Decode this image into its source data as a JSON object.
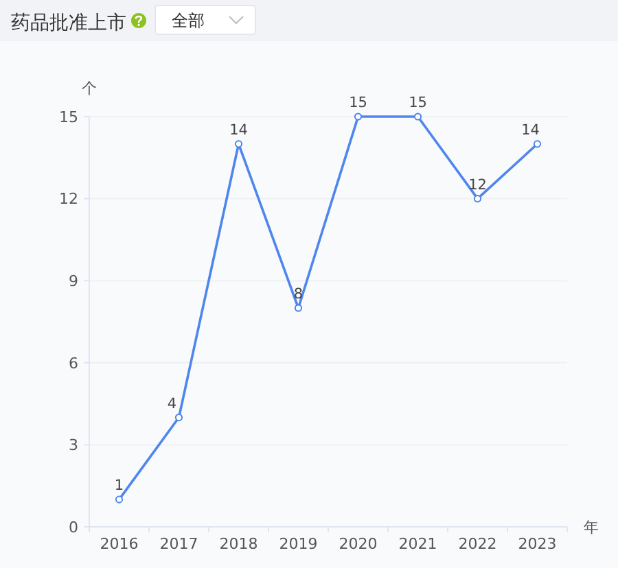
{
  "chart_data": {
    "type": "line",
    "title": "药品批准上市",
    "annotations": [
      "全部"
    ],
    "xlabel": "年",
    "ylabel": "个",
    "categories": [
      "2016",
      "2017",
      "2018",
      "2019",
      "2020",
      "2021",
      "2022",
      "2023"
    ],
    "series": [
      {
        "color": "#4f86ee",
        "values": [
          1,
          4,
          14,
          8,
          15,
          15,
          12,
          14
        ]
      }
    ],
    "ylim": [
      0,
      15
    ],
    "yticks": [
      0,
      3,
      6,
      9,
      12,
      15
    ],
    "grid": "y",
    "marker": "circle",
    "line_style": "solid",
    "data_labels": true
  }
}
